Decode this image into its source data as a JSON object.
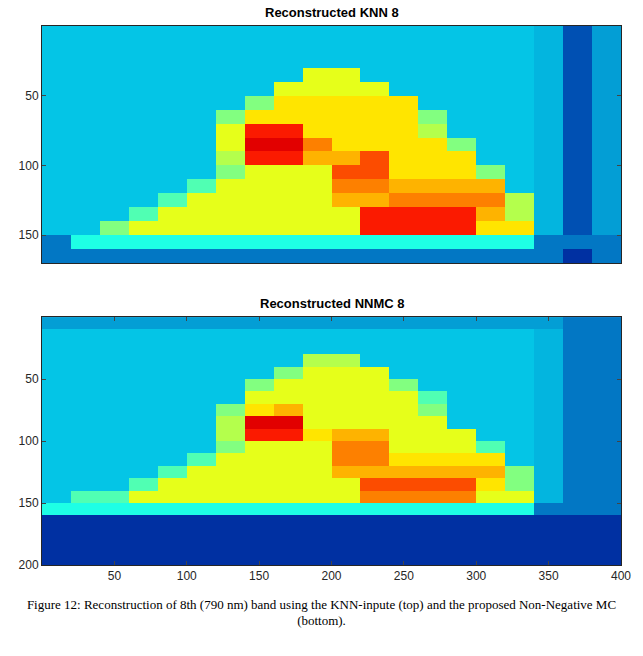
{
  "chart_data": [
    {
      "type": "heatmap",
      "title": "Reconstructed KNN 8",
      "color": "Jet",
      "tick_labels": "y",
      "xlim": [
        0,
        400
      ],
      "ylim": [
        0,
        170
      ],
      "yticks": [
        50,
        100,
        150
      ],
      "zlim": [
        0,
        1
      ],
      "x": [
        10,
        30,
        50,
        70,
        90,
        110,
        130,
        150,
        170,
        190,
        210,
        230,
        250,
        270,
        290,
        310,
        330,
        350,
        370,
        390
      ],
      "y": [
        5,
        15,
        25,
        35,
        45,
        55,
        65,
        75,
        85,
        95,
        105,
        115,
        125,
        135,
        145,
        155,
        165
      ],
      "z": [
        [
          0.3,
          0.3,
          0.3,
          0.3,
          0.3,
          0.3,
          0.3,
          0.3,
          0.3,
          0.3,
          0.3,
          0.3,
          0.3,
          0.3,
          0.3,
          0.3,
          0.3,
          0.28,
          0.15,
          0.25
        ],
        [
          0.3,
          0.3,
          0.3,
          0.3,
          0.3,
          0.3,
          0.3,
          0.3,
          0.3,
          0.3,
          0.3,
          0.3,
          0.3,
          0.3,
          0.3,
          0.3,
          0.3,
          0.28,
          0.15,
          0.25
        ],
        [
          0.3,
          0.3,
          0.3,
          0.3,
          0.3,
          0.3,
          0.3,
          0.3,
          0.3,
          0.3,
          0.3,
          0.3,
          0.3,
          0.3,
          0.3,
          0.3,
          0.3,
          0.28,
          0.15,
          0.25
        ],
        [
          0.3,
          0.3,
          0.3,
          0.3,
          0.3,
          0.3,
          0.3,
          0.3,
          0.3,
          0.6,
          0.6,
          0.3,
          0.3,
          0.3,
          0.3,
          0.3,
          0.3,
          0.28,
          0.15,
          0.25
        ],
        [
          0.3,
          0.3,
          0.3,
          0.3,
          0.3,
          0.3,
          0.3,
          0.3,
          0.6,
          0.6,
          0.6,
          0.6,
          0.3,
          0.3,
          0.3,
          0.3,
          0.3,
          0.28,
          0.15,
          0.25
        ],
        [
          0.3,
          0.3,
          0.3,
          0.3,
          0.3,
          0.3,
          0.3,
          0.5,
          0.65,
          0.65,
          0.65,
          0.65,
          0.65,
          0.3,
          0.3,
          0.3,
          0.3,
          0.28,
          0.15,
          0.25
        ],
        [
          0.3,
          0.3,
          0.3,
          0.3,
          0.3,
          0.3,
          0.5,
          0.65,
          0.65,
          0.65,
          0.65,
          0.65,
          0.65,
          0.5,
          0.3,
          0.3,
          0.3,
          0.28,
          0.15,
          0.25
        ],
        [
          0.3,
          0.3,
          0.3,
          0.3,
          0.3,
          0.3,
          0.6,
          0.85,
          0.85,
          0.65,
          0.65,
          0.65,
          0.65,
          0.55,
          0.3,
          0.3,
          0.3,
          0.28,
          0.15,
          0.25
        ],
        [
          0.3,
          0.3,
          0.3,
          0.3,
          0.3,
          0.3,
          0.6,
          0.9,
          0.9,
          0.75,
          0.65,
          0.65,
          0.65,
          0.65,
          0.5,
          0.3,
          0.3,
          0.28,
          0.15,
          0.25
        ],
        [
          0.3,
          0.3,
          0.3,
          0.3,
          0.3,
          0.3,
          0.55,
          0.85,
          0.85,
          0.7,
          0.7,
          0.8,
          0.65,
          0.65,
          0.65,
          0.3,
          0.3,
          0.28,
          0.15,
          0.25
        ],
        [
          0.3,
          0.3,
          0.3,
          0.3,
          0.3,
          0.3,
          0.5,
          0.6,
          0.6,
          0.6,
          0.8,
          0.8,
          0.65,
          0.65,
          0.65,
          0.5,
          0.3,
          0.28,
          0.15,
          0.25
        ],
        [
          0.3,
          0.3,
          0.3,
          0.3,
          0.3,
          0.45,
          0.6,
          0.6,
          0.6,
          0.6,
          0.75,
          0.75,
          0.7,
          0.7,
          0.7,
          0.7,
          0.3,
          0.28,
          0.15,
          0.25
        ],
        [
          0.3,
          0.3,
          0.3,
          0.3,
          0.45,
          0.6,
          0.6,
          0.6,
          0.6,
          0.6,
          0.7,
          0.7,
          0.75,
          0.75,
          0.75,
          0.75,
          0.55,
          0.28,
          0.15,
          0.25
        ],
        [
          0.3,
          0.3,
          0.3,
          0.45,
          0.6,
          0.6,
          0.6,
          0.6,
          0.6,
          0.6,
          0.6,
          0.85,
          0.85,
          0.85,
          0.85,
          0.7,
          0.55,
          0.28,
          0.15,
          0.25
        ],
        [
          0.3,
          0.3,
          0.5,
          0.6,
          0.6,
          0.6,
          0.6,
          0.6,
          0.6,
          0.6,
          0.6,
          0.85,
          0.85,
          0.85,
          0.85,
          0.65,
          0.65,
          0.28,
          0.15,
          0.25
        ],
        [
          0.2,
          0.4,
          0.4,
          0.4,
          0.4,
          0.4,
          0.4,
          0.4,
          0.4,
          0.4,
          0.4,
          0.4,
          0.4,
          0.4,
          0.4,
          0.4,
          0.4,
          0.2,
          0.2,
          0.2
        ],
        [
          0.2,
          0.2,
          0.2,
          0.2,
          0.2,
          0.2,
          0.2,
          0.2,
          0.2,
          0.2,
          0.2,
          0.2,
          0.2,
          0.2,
          0.2,
          0.2,
          0.2,
          0.2,
          0.1,
          0.2
        ]
      ]
    },
    {
      "type": "heatmap",
      "title": "Reconstructed NNMC 8",
      "color": "Jet",
      "xlim": [
        0,
        400
      ],
      "ylim": [
        0,
        200
      ],
      "xticks": [
        50,
        100,
        150,
        200,
        250,
        300,
        350,
        400
      ],
      "yticks": [
        50,
        100,
        150,
        200
      ],
      "zlim": [
        0,
        1
      ],
      "x": [
        10,
        30,
        50,
        70,
        90,
        110,
        130,
        150,
        170,
        190,
        210,
        230,
        250,
        270,
        290,
        310,
        330,
        350,
        370,
        390
      ],
      "y": [
        5,
        15,
        25,
        35,
        45,
        55,
        65,
        75,
        85,
        95,
        105,
        115,
        125,
        135,
        145,
        155,
        165,
        175,
        185,
        195
      ],
      "z": [
        [
          0.25,
          0.25,
          0.25,
          0.25,
          0.25,
          0.25,
          0.25,
          0.25,
          0.25,
          0.25,
          0.25,
          0.25,
          0.25,
          0.25,
          0.25,
          0.25,
          0.25,
          0.25,
          0.2,
          0.2
        ],
        [
          0.3,
          0.3,
          0.3,
          0.3,
          0.3,
          0.3,
          0.3,
          0.3,
          0.3,
          0.3,
          0.3,
          0.3,
          0.3,
          0.3,
          0.3,
          0.3,
          0.3,
          0.28,
          0.2,
          0.2
        ],
        [
          0.3,
          0.3,
          0.3,
          0.3,
          0.3,
          0.3,
          0.3,
          0.3,
          0.3,
          0.3,
          0.3,
          0.3,
          0.3,
          0.3,
          0.3,
          0.3,
          0.3,
          0.28,
          0.2,
          0.2
        ],
        [
          0.3,
          0.3,
          0.3,
          0.3,
          0.3,
          0.3,
          0.3,
          0.3,
          0.3,
          0.55,
          0.55,
          0.3,
          0.3,
          0.3,
          0.3,
          0.3,
          0.3,
          0.28,
          0.2,
          0.2
        ],
        [
          0.3,
          0.3,
          0.3,
          0.3,
          0.3,
          0.3,
          0.3,
          0.3,
          0.5,
          0.6,
          0.6,
          0.6,
          0.3,
          0.3,
          0.3,
          0.3,
          0.3,
          0.28,
          0.2,
          0.2
        ],
        [
          0.3,
          0.3,
          0.3,
          0.3,
          0.3,
          0.3,
          0.3,
          0.5,
          0.6,
          0.6,
          0.6,
          0.6,
          0.5,
          0.3,
          0.3,
          0.3,
          0.3,
          0.28,
          0.2,
          0.2
        ],
        [
          0.3,
          0.3,
          0.3,
          0.3,
          0.3,
          0.3,
          0.3,
          0.6,
          0.6,
          0.6,
          0.6,
          0.6,
          0.6,
          0.45,
          0.3,
          0.3,
          0.3,
          0.28,
          0.2,
          0.2
        ],
        [
          0.3,
          0.3,
          0.3,
          0.3,
          0.3,
          0.3,
          0.5,
          0.65,
          0.7,
          0.6,
          0.6,
          0.6,
          0.6,
          0.5,
          0.3,
          0.3,
          0.3,
          0.28,
          0.2,
          0.2
        ],
        [
          0.3,
          0.3,
          0.3,
          0.3,
          0.3,
          0.3,
          0.55,
          0.9,
          0.9,
          0.6,
          0.6,
          0.6,
          0.6,
          0.6,
          0.3,
          0.3,
          0.3,
          0.28,
          0.2,
          0.2
        ],
        [
          0.3,
          0.3,
          0.3,
          0.3,
          0.3,
          0.3,
          0.55,
          0.85,
          0.85,
          0.65,
          0.7,
          0.7,
          0.6,
          0.6,
          0.6,
          0.3,
          0.3,
          0.28,
          0.2,
          0.2
        ],
        [
          0.3,
          0.3,
          0.3,
          0.3,
          0.3,
          0.3,
          0.5,
          0.6,
          0.6,
          0.6,
          0.75,
          0.75,
          0.6,
          0.6,
          0.6,
          0.45,
          0.3,
          0.28,
          0.2,
          0.2
        ],
        [
          0.3,
          0.3,
          0.3,
          0.3,
          0.3,
          0.45,
          0.6,
          0.6,
          0.6,
          0.6,
          0.75,
          0.75,
          0.65,
          0.65,
          0.65,
          0.65,
          0.3,
          0.28,
          0.2,
          0.2
        ],
        [
          0.3,
          0.3,
          0.3,
          0.3,
          0.45,
          0.6,
          0.6,
          0.6,
          0.6,
          0.6,
          0.7,
          0.7,
          0.7,
          0.7,
          0.7,
          0.7,
          0.5,
          0.28,
          0.2,
          0.2
        ],
        [
          0.3,
          0.3,
          0.3,
          0.45,
          0.6,
          0.6,
          0.6,
          0.6,
          0.6,
          0.6,
          0.6,
          0.8,
          0.8,
          0.8,
          0.8,
          0.65,
          0.5,
          0.28,
          0.2,
          0.2
        ],
        [
          0.3,
          0.45,
          0.45,
          0.6,
          0.6,
          0.6,
          0.6,
          0.6,
          0.6,
          0.6,
          0.6,
          0.75,
          0.75,
          0.75,
          0.75,
          0.6,
          0.6,
          0.28,
          0.2,
          0.2
        ],
        [
          0.4,
          0.4,
          0.4,
          0.4,
          0.4,
          0.4,
          0.4,
          0.4,
          0.4,
          0.4,
          0.4,
          0.4,
          0.4,
          0.4,
          0.4,
          0.4,
          0.4,
          0.2,
          0.2,
          0.2
        ],
        [
          0.1,
          0.1,
          0.1,
          0.1,
          0.1,
          0.1,
          0.1,
          0.1,
          0.1,
          0.1,
          0.1,
          0.1,
          0.1,
          0.1,
          0.1,
          0.1,
          0.1,
          0.1,
          0.1,
          0.1
        ],
        [
          0.1,
          0.1,
          0.1,
          0.1,
          0.1,
          0.1,
          0.1,
          0.1,
          0.1,
          0.1,
          0.1,
          0.1,
          0.1,
          0.1,
          0.1,
          0.1,
          0.1,
          0.1,
          0.1,
          0.1
        ],
        [
          0.1,
          0.1,
          0.1,
          0.1,
          0.1,
          0.1,
          0.1,
          0.1,
          0.1,
          0.1,
          0.1,
          0.1,
          0.1,
          0.1,
          0.1,
          0.1,
          0.1,
          0.1,
          0.1,
          0.1
        ],
        [
          0.1,
          0.1,
          0.1,
          0.1,
          0.1,
          0.1,
          0.1,
          0.1,
          0.1,
          0.1,
          0.1,
          0.1,
          0.1,
          0.1,
          0.1,
          0.1,
          0.1,
          0.1,
          0.1,
          0.1
        ]
      ]
    }
  ],
  "caption": "Figure 12: Reconstruction of 8th (790 nm) band using the KNN-inpute (top) and the proposed Non-Negative MC (bottom)."
}
